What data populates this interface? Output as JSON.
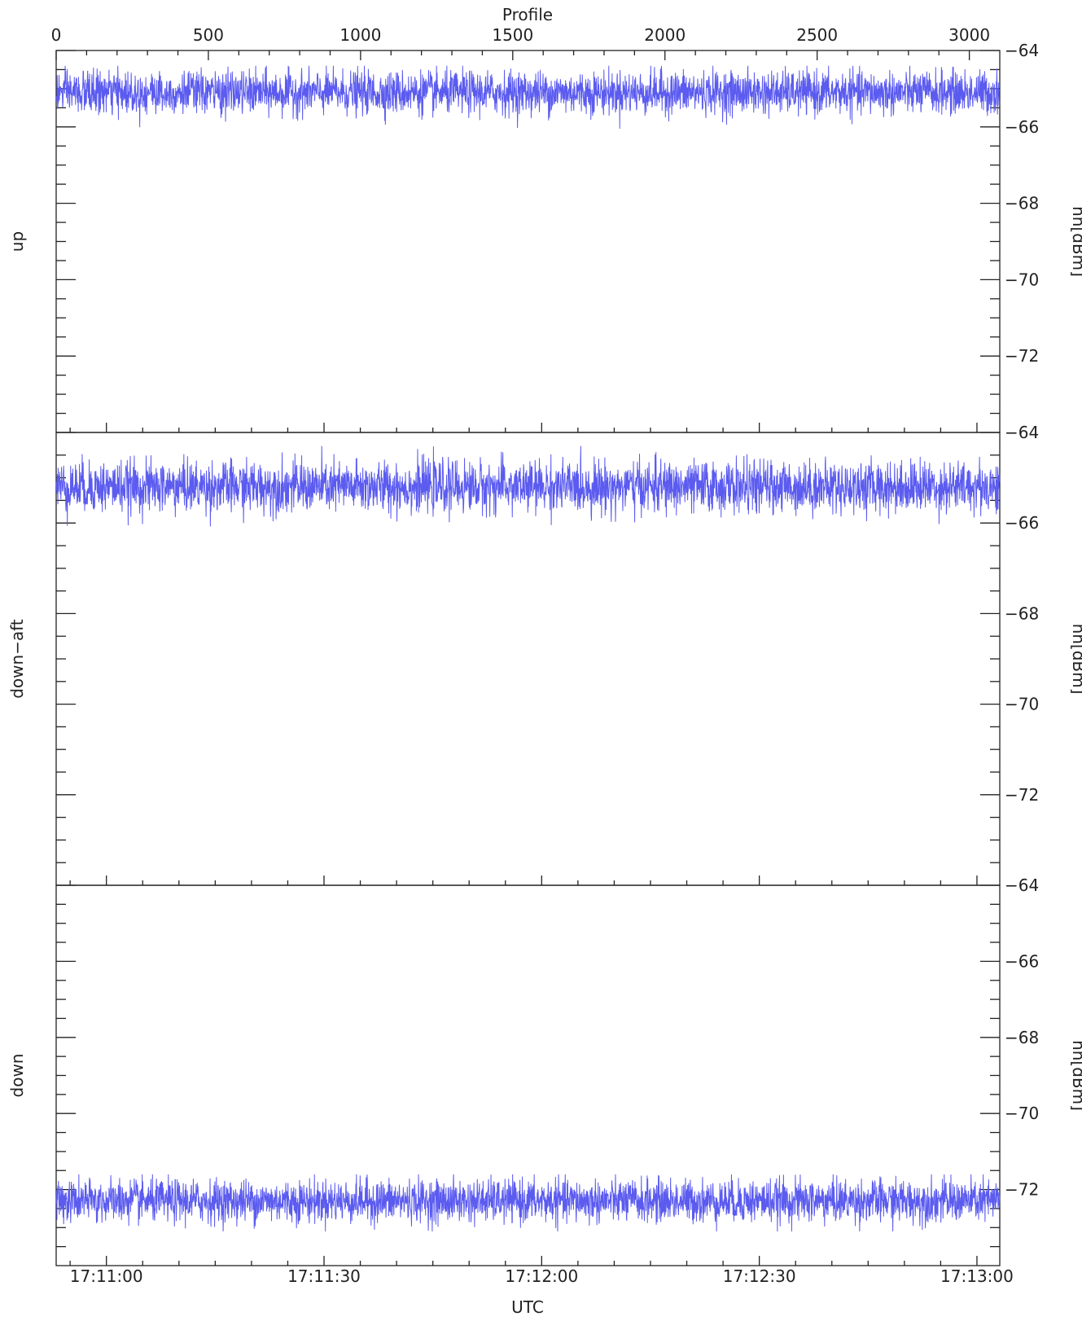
{
  "chart_data": {
    "type": "line",
    "colors": {
      "trace": "#5b5bf0",
      "axis": "#222222",
      "background": "#ffffff"
    },
    "top_axis": {
      "label": "Profile",
      "range": [
        0,
        3100
      ],
      "ticks": [
        0,
        500,
        1000,
        1500,
        2000,
        2500,
        3000
      ],
      "tick_labels": [
        "0",
        "500",
        "1000",
        "1500",
        "2000",
        "2500",
        "3000"
      ]
    },
    "bottom_axis": {
      "label": "UTC",
      "tick_labels": [
        "17:11:00",
        "17:11:30",
        "17:12:00",
        "17:12:30",
        "17:13:00"
      ],
      "tick_profiles": [
        165,
        880,
        1595,
        2310,
        3025
      ]
    },
    "right_axis": {
      "label": "hh[dBm]",
      "ylim": [
        -64,
        -74
      ],
      "ticks": [
        -64,
        -66,
        -68,
        -70,
        -72
      ],
      "tick_labels": [
        "−64",
        "−66",
        "−68",
        "−70",
        "−72"
      ]
    },
    "series": [
      {
        "name": "up",
        "mean": -65.1,
        "amplitude": 0.28,
        "min": -66.1,
        "max": -64.4,
        "n_points": 3100
      },
      {
        "name": "down−aft",
        "mean": -65.2,
        "amplitude": 0.28,
        "min": -66.2,
        "max": -64.3,
        "n_points": 3100
      },
      {
        "name": "down",
        "mean": -72.3,
        "amplitude": 0.28,
        "min": -73.1,
        "max": -71.6,
        "n_points": 3100
      }
    ]
  }
}
